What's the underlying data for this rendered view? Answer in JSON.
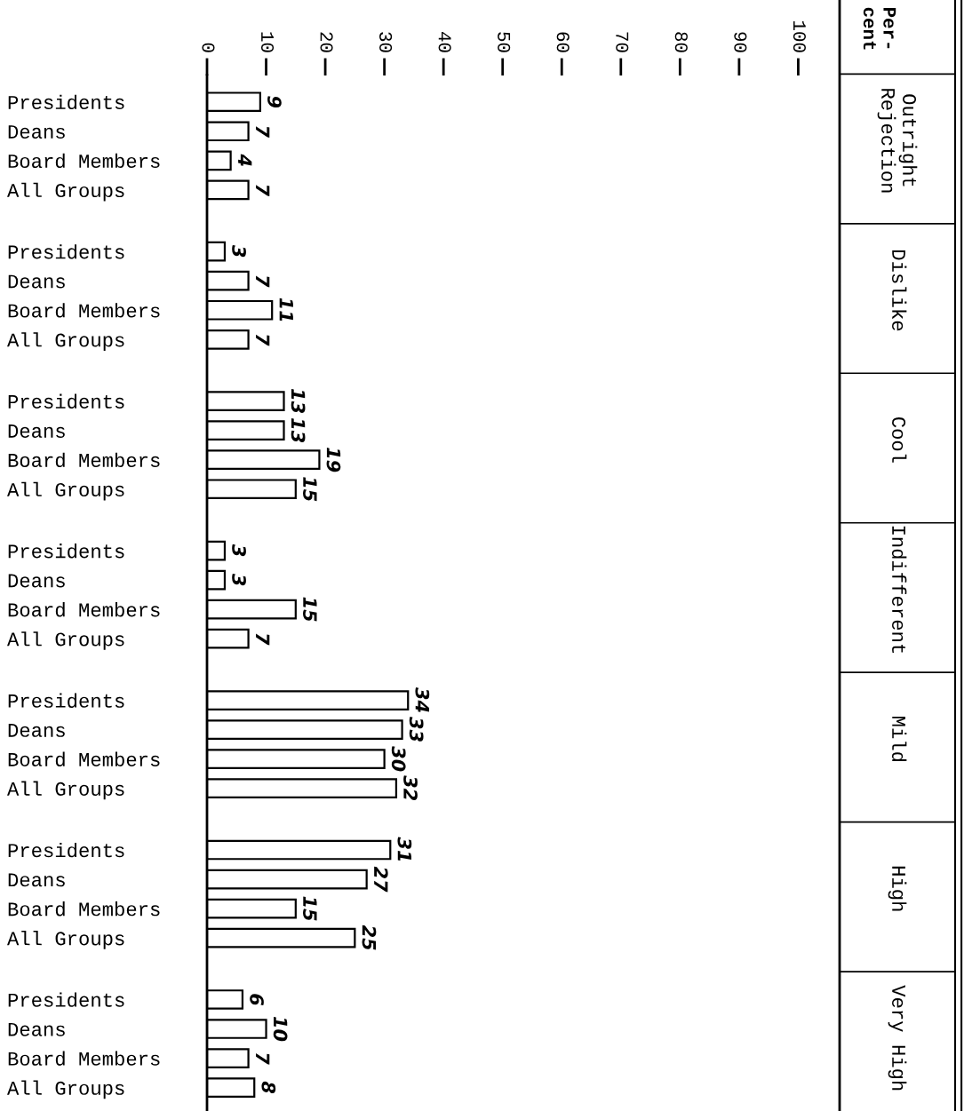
{
  "chart_data": {
    "type": "bar",
    "orientation": "horizontal",
    "title": "Per-\ncent",
    "categories": [
      "Presidents",
      "Deans",
      "Board Members",
      "All Groups",
      "Presidents",
      "Deans",
      "Board Members",
      "All Groups",
      "Presidents",
      "Deans",
      "Board Members",
      "All Groups",
      "Presidents",
      "Deans",
      "Board Members",
      "All Groups",
      "Presidents",
      "Deans",
      "Board Members",
      "All Groups",
      "Presidents",
      "Deans",
      "Board Members",
      "All Groups",
      "Presidents",
      "Deans",
      "Board Members",
      "All Groups"
    ],
    "values": [
      9,
      7,
      4,
      7,
      3,
      7,
      11,
      7,
      13,
      13,
      19,
      15,
      3,
      3,
      15,
      7,
      34,
      33,
      30,
      32,
      31,
      27,
      15,
      25,
      6,
      10,
      7,
      8
    ],
    "color": "#ffffff",
    "xlim": [
      0,
      107
    ],
    "xticks": [
      0,
      10,
      20,
      30,
      40,
      50,
      60,
      70,
      80,
      90,
      100
    ],
    "data_labels": true,
    "grid": false,
    "annotations": [
      "Outright\nRejection",
      "Dislike",
      "Cool",
      "Indifferent",
      "Mild",
      "High",
      "Very High"
    ]
  }
}
